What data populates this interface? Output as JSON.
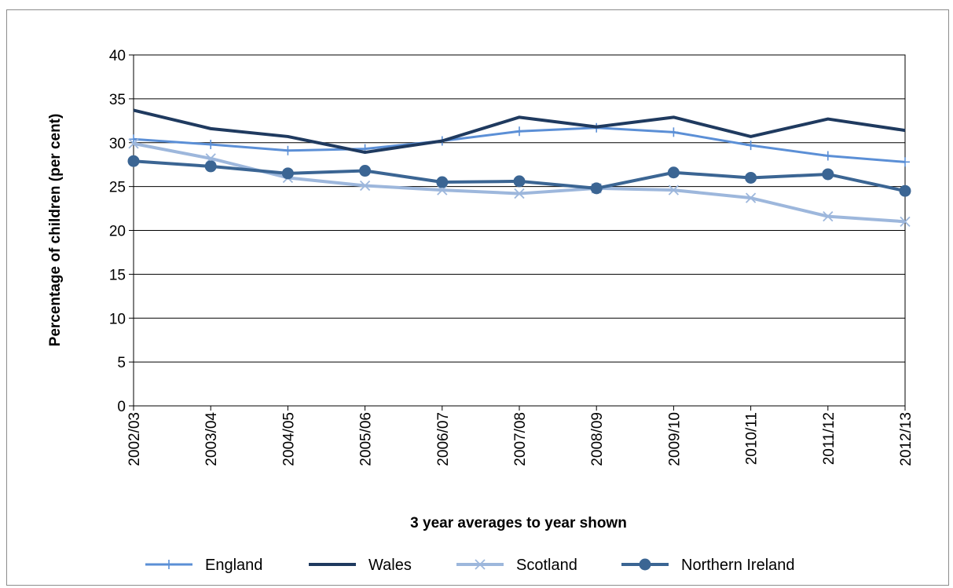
{
  "chart_data": {
    "type": "line",
    "title": "",
    "xlabel": "3 year averages to year shown",
    "ylabel": "Percentage of children (per cent)",
    "ylim": [
      0,
      40
    ],
    "yticks": [
      "0",
      "5",
      "10",
      "15",
      "20",
      "25",
      "30",
      "35",
      "40"
    ],
    "grid": "horizontal",
    "legend_position": "bottom",
    "categories": [
      "2002/03",
      "2003/04",
      "2004/05",
      "2005/06",
      "2006/07",
      "2007/08",
      "2008/09",
      "2009/10",
      "2010/11",
      "2011/12",
      "2012/13"
    ],
    "series": [
      {
        "name": "England",
        "marker": "plus",
        "color": "#5b8fd6",
        "width": 3,
        "values": [
          30.4,
          29.8,
          29.1,
          29.3,
          30.2,
          31.3,
          31.7,
          31.2,
          29.7,
          28.5,
          27.8
        ]
      },
      {
        "name": "Wales",
        "marker": "none",
        "color": "#1f3a5f",
        "width": 4,
        "values": [
          33.7,
          31.6,
          30.7,
          28.9,
          30.2,
          32.9,
          31.8,
          32.9,
          30.7,
          32.7,
          31.4
        ]
      },
      {
        "name": "Scotland",
        "marker": "cross",
        "color": "#9db7dc",
        "width": 4,
        "values": [
          29.9,
          28.2,
          26.0,
          25.1,
          24.6,
          24.2,
          24.8,
          24.6,
          23.7,
          21.6,
          21.0
        ]
      },
      {
        "name": "Northern Ireland",
        "marker": "circle",
        "color": "#3b6593",
        "width": 4,
        "values": [
          27.9,
          27.3,
          26.5,
          26.8,
          25.5,
          25.6,
          24.8,
          26.6,
          26.0,
          26.4,
          24.5
        ]
      }
    ]
  }
}
